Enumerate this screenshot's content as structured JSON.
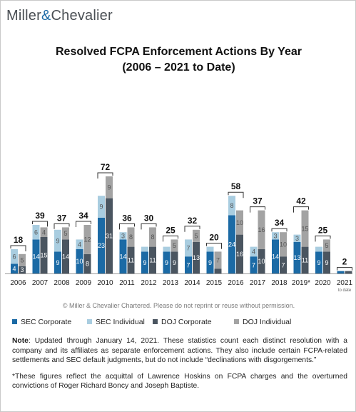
{
  "brand": {
    "left": "Miller",
    "amp": "&",
    "right": "Chevalier"
  },
  "title_line1": "Resolved FCPA Enforcement Actions By Year",
  "title_line2": "(2006 – 2021 to Date)",
  "copyright": "© Miller & Chevalier Chartered. Please do not reprint or reuse without permission.",
  "note_label": "Note",
  "note_text": ": Updated through January 14, 2021. These statistics count each distinct resolution with a company and its affiliates as separate enforcement actions. They also include certain FCPA-related settlements and SEC default judgments, but do not include “declinations with disgorgements.”",
  "footnote": "*These figures reflect the acquittal of Lawrence Hoskins on FCPA charges and the overturned convictions of Roger Richard Boncy and Joseph Baptiste.",
  "chart_data": {
    "type": "bar",
    "categories": [
      "2006",
      "2007",
      "2008",
      "2009",
      "2010",
      "2011",
      "2012",
      "2013",
      "2014",
      "2015",
      "2016",
      "2017",
      "2018",
      "2019*",
      "2020",
      "2021"
    ],
    "category_subnotes": {
      "2021": "to date"
    },
    "series": [
      {
        "name": "SEC Corporate",
        "color": "#1b6aa5",
        "values": [
          4,
          14,
          9,
          10,
          23,
          14,
          9,
          9,
          7,
          9,
          24,
          7,
          14,
          13,
          9,
          1
        ],
        "stack": "SEC"
      },
      {
        "name": "SEC Individual",
        "color": "#a9cde0",
        "values": [
          6,
          6,
          9,
          4,
          9,
          3,
          2,
          2,
          7,
          2,
          8,
          4,
          3,
          3,
          2,
          0
        ],
        "stack": "SEC"
      },
      {
        "name": "DOJ Corporate",
        "color": "#4a5560",
        "values": [
          3,
          15,
          14,
          8,
          31,
          11,
          11,
          9,
          13,
          2,
          16,
          10,
          7,
          11,
          9,
          1
        ],
        "stack": "DOJ"
      },
      {
        "name": "DOJ Individual",
        "color": "#a3a3a3",
        "values": [
          5,
          4,
          5,
          12,
          9,
          8,
          8,
          5,
          5,
          7,
          10,
          16,
          10,
          15,
          5,
          0
        ],
        "stack": "DOJ"
      }
    ],
    "totals": [
      18,
      39,
      37,
      34,
      72,
      36,
      30,
      25,
      32,
      20,
      58,
      37,
      34,
      42,
      25,
      2
    ],
    "ylim": [
      0,
      72
    ],
    "legend_position": "bottom"
  }
}
